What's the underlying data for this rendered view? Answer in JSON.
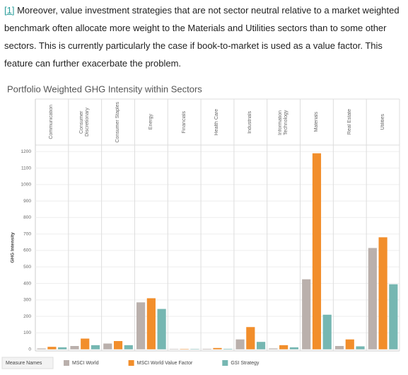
{
  "paragraph": {
    "ref": "[1]",
    "text": "Moreover, value investment strategies that are not sector neutral relative to a market weighted benchmark often allocate more weight to the Materials and Utilities sectors than to some other sectors. This is currently particularly the case if book-to-market is used as a value factor. This feature can further exacerbate the problem."
  },
  "chart_data": {
    "type": "bar",
    "title": "Portfolio Weighted GHG Intensity within Sectors",
    "y_label": "GHG Intensity",
    "categories": [
      "Communication",
      "Consumer Discretionary",
      "Consumer Staples",
      "Energy",
      "Financials",
      "Health Care",
      "Industrials",
      "Information Technology",
      "Materials",
      "Real Estate",
      "Utilities"
    ],
    "series": [
      {
        "name": "MSCI World",
        "color": "#bab0ac",
        "values": [
          5,
          20,
          35,
          285,
          2,
          3,
          60,
          5,
          425,
          20,
          615
        ]
      },
      {
        "name": "MSCI World Value Factor",
        "color": "#f28e2b",
        "values": [
          15,
          65,
          50,
          310,
          2,
          8,
          135,
          25,
          1190,
          60,
          680
        ]
      },
      {
        "name": "GSI Strategy",
        "color": "#76b7b2",
        "values": [
          12,
          25,
          25,
          245,
          2,
          3,
          45,
          12,
          210,
          18,
          395
        ]
      }
    ],
    "legend_title": "Measure Names",
    "ylim": [
      -10,
      1240
    ],
    "yticks": [
      0,
      100,
      200,
      300,
      400,
      500,
      600,
      700,
      800,
      900,
      1000,
      1100,
      1200
    ],
    "grid": true
  }
}
